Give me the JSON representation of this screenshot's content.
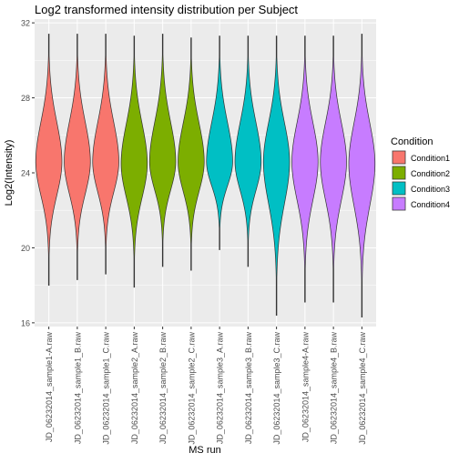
{
  "chart_data": {
    "type": "violin",
    "title": "Log2 transformed intensity distribution per Subject",
    "xlabel": "MS run",
    "ylabel": "Log2(Intensity)",
    "ylim": [
      15.8,
      32.2
    ],
    "yticks": [
      16,
      20,
      24,
      28,
      32
    ],
    "grid": true,
    "legend": {
      "title": "Condition",
      "position": "right",
      "items": [
        {
          "label": "Condition1",
          "color": "#F8766D"
        },
        {
          "label": "Condition2",
          "color": "#7CAE00"
        },
        {
          "label": "Condition3",
          "color": "#00BFC4"
        },
        {
          "label": "Condition4",
          "color": "#C77CFF"
        }
      ]
    },
    "categories": [
      "JD_06232014_sample1-A.raw",
      "JD_06232014_sample1_B.raw",
      "JD_06232014_sample1_C.raw",
      "JD_06232014_sample2_A.raw",
      "JD_06232014_sample2_B.raw",
      "JD_06232014_sample2_C.raw",
      "JD_06232014_sample3_A.raw",
      "JD_06232014_sample3_B.raw",
      "JD_06232014_sample3_C.raw",
      "JD_06232014_sample4-A.raw",
      "JD_06232014_sample4_B.raw",
      "JD_06232014_sample4_C.raw"
    ],
    "runs": [
      {
        "condition": "Condition1",
        "min": 18.0,
        "max": 31.4,
        "mode": 24.6
      },
      {
        "condition": "Condition1",
        "min": 18.3,
        "max": 31.4,
        "mode": 24.6
      },
      {
        "condition": "Condition1",
        "min": 18.6,
        "max": 31.4,
        "mode": 24.6
      },
      {
        "condition": "Condition2",
        "min": 17.9,
        "max": 31.3,
        "mode": 24.5
      },
      {
        "condition": "Condition2",
        "min": 19.0,
        "max": 31.4,
        "mode": 24.6
      },
      {
        "condition": "Condition2",
        "min": 18.8,
        "max": 31.2,
        "mode": 24.6
      },
      {
        "condition": "Condition3",
        "min": 19.9,
        "max": 31.3,
        "mode": 24.6
      },
      {
        "condition": "Condition3",
        "min": 19.0,
        "max": 31.3,
        "mode": 24.6
      },
      {
        "condition": "Condition3",
        "min": 16.4,
        "max": 31.3,
        "mode": 24.6
      },
      {
        "condition": "Condition4",
        "min": 17.1,
        "max": 31.3,
        "mode": 24.6
      },
      {
        "condition": "Condition4",
        "min": 17.1,
        "max": 31.3,
        "mode": 24.6
      },
      {
        "condition": "Condition4",
        "min": 16.3,
        "max": 31.4,
        "mode": 24.5
      }
    ],
    "colors": {
      "panel_background": "#EBEBEB",
      "grid_major": "#FFFFFF",
      "outline": "#333333",
      "axis_text": "#4D4D4D"
    }
  }
}
